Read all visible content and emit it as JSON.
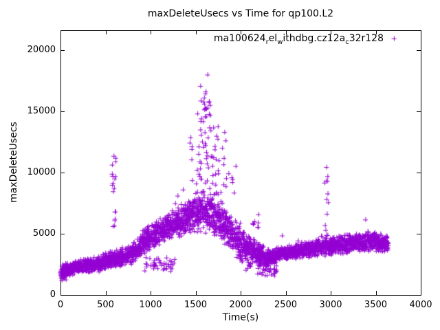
{
  "title": "maxDeleteUsecs vs Time for qp100.L2",
  "legend": {
    "series_plain": "ma100624_rel_withdbg.cz12a_c32r128",
    "segments": [
      {
        "text": "ma100624"
      },
      {
        "text": "r",
        "sub": true
      },
      {
        "text": "el"
      },
      {
        "text": "w",
        "sub": true
      },
      {
        "text": "ithdbg.cz12a"
      },
      {
        "text": "c",
        "sub": true
      },
      {
        "text": "32r128"
      }
    ]
  },
  "chart_data": {
    "type": "scatter",
    "title": "maxDeleteUsecs vs Time for qp100.L2",
    "xlabel": "Time(s)",
    "ylabel": "maxDeleteUsecs",
    "xlim": [
      0,
      4000
    ],
    "ylim": [
      0,
      21600
    ],
    "xticks": [
      0,
      500,
      1000,
      1500,
      2000,
      2500,
      3000,
      3500,
      4000
    ],
    "yticks": [
      0,
      5000,
      10000,
      15000,
      20000
    ],
    "grid": false,
    "legend_position": "top-right",
    "marker": {
      "shape": "plus",
      "color": "#9400D3",
      "size": 7
    },
    "series_name": "ma100624_rel_withdbg.cz12a_c32r128",
    "description": "Dense scatter of per-second maxDeleteUsecs. Baseline band rises from ~1100-2500 usecs at t=0 to ~5000-9000 at t=1600, peaks in a narrow column up to ~18000 at t~1630, decays to a dip of ~1500-3800 around t=2200-2400, then recovers to ~3400-5200 through t=3640. Isolated vertical spikes at t~590 (to ~11350) and t~2950 (to ~10430).",
    "band_profile": {
      "t": [
        0,
        100,
        200,
        300,
        400,
        500,
        600,
        700,
        800,
        900,
        1000,
        1100,
        1200,
        1300,
        1400,
        1500,
        1600,
        1700,
        1800,
        1900,
        2000,
        2100,
        2200,
        2300,
        2400,
        2500,
        2600,
        2700,
        2800,
        2900,
        3000,
        3100,
        3200,
        3300,
        3400,
        3500,
        3640
      ],
      "low": [
        1100,
        1500,
        1700,
        1800,
        1800,
        2000,
        2200,
        2300,
        2500,
        3000,
        3600,
        4100,
        4400,
        4600,
        4800,
        5000,
        5000,
        4700,
        4200,
        3400,
        2500,
        2600,
        2400,
        2200,
        2700,
        2800,
        2900,
        3000,
        3000,
        3100,
        3200,
        3200,
        3300,
        3400,
        3400,
        3500,
        3400
      ],
      "high": [
        2500,
        2700,
        2900,
        3100,
        3200,
        3500,
        3700,
        4000,
        4300,
        5300,
        5900,
        6300,
        6800,
        7200,
        7800,
        8500,
        9000,
        8700,
        7700,
        6700,
        5800,
        5100,
        4300,
        3800,
        3900,
        4100,
        4200,
        4400,
        4500,
        4700,
        4800,
        4900,
        5000,
        5100,
        5200,
        5200,
        4900
      ],
      "points_per_100s": 92
    },
    "clusters": [
      {
        "t0": 565,
        "t1": 612,
        "n": 16,
        "lo": 4200,
        "hi": 11350,
        "note": "spike at t~590"
      },
      {
        "t0": 2930,
        "t1": 2975,
        "n": 12,
        "lo": 4800,
        "hi": 10400,
        "note": "spike at t~2950"
      },
      {
        "t0": 1545,
        "t1": 1700,
        "n": 48,
        "lo": 8800,
        "hi": 17300,
        "note": "central peak core"
      },
      {
        "t0": 1700,
        "t1": 1850,
        "n": 20,
        "lo": 8200,
        "hi": 13800,
        "note": "peak right shoulder"
      },
      {
        "t0": 1430,
        "t1": 1545,
        "n": 12,
        "lo": 8200,
        "hi": 13000,
        "note": "peak left shoulder"
      },
      {
        "t0": 1850,
        "t1": 1960,
        "n": 6,
        "lo": 7800,
        "hi": 10700,
        "note": "post-peak highs"
      },
      {
        "t0": 930,
        "t1": 1290,
        "n": 42,
        "lo": 1900,
        "hi": 3100,
        "note": "detached low band"
      },
      {
        "t0": 2050,
        "t1": 2120,
        "n": 10,
        "lo": 1900,
        "hi": 3000,
        "note": "low tail after 2000"
      },
      {
        "t0": 2180,
        "t1": 2400,
        "n": 55,
        "lo": 1500,
        "hi": 2900,
        "note": "dip wedge"
      },
      {
        "t0": 2130,
        "t1": 2210,
        "n": 8,
        "lo": 4500,
        "hi": 6600,
        "note": "high streak ~2170"
      },
      {
        "t0": 0,
        "t1": 60,
        "n": 10,
        "lo": 1100,
        "hi": 1800,
        "note": "low start"
      }
    ],
    "notable_points": [
      [
        1632,
        17980
      ],
      [
        1612,
        16600
      ],
      [
        1650,
        15800
      ],
      [
        1560,
        14400
      ],
      [
        1520,
        14800
      ],
      [
        590,
        11350
      ],
      [
        578,
        9700
      ],
      [
        2952,
        10430
      ],
      [
        1300,
        8100
      ],
      [
        1360,
        8600
      ],
      [
        1810,
        10650
      ],
      [
        3385,
        6150
      ],
      [
        3410,
        5200
      ],
      [
        2460,
        4850
      ]
    ],
    "seed": 42
  }
}
